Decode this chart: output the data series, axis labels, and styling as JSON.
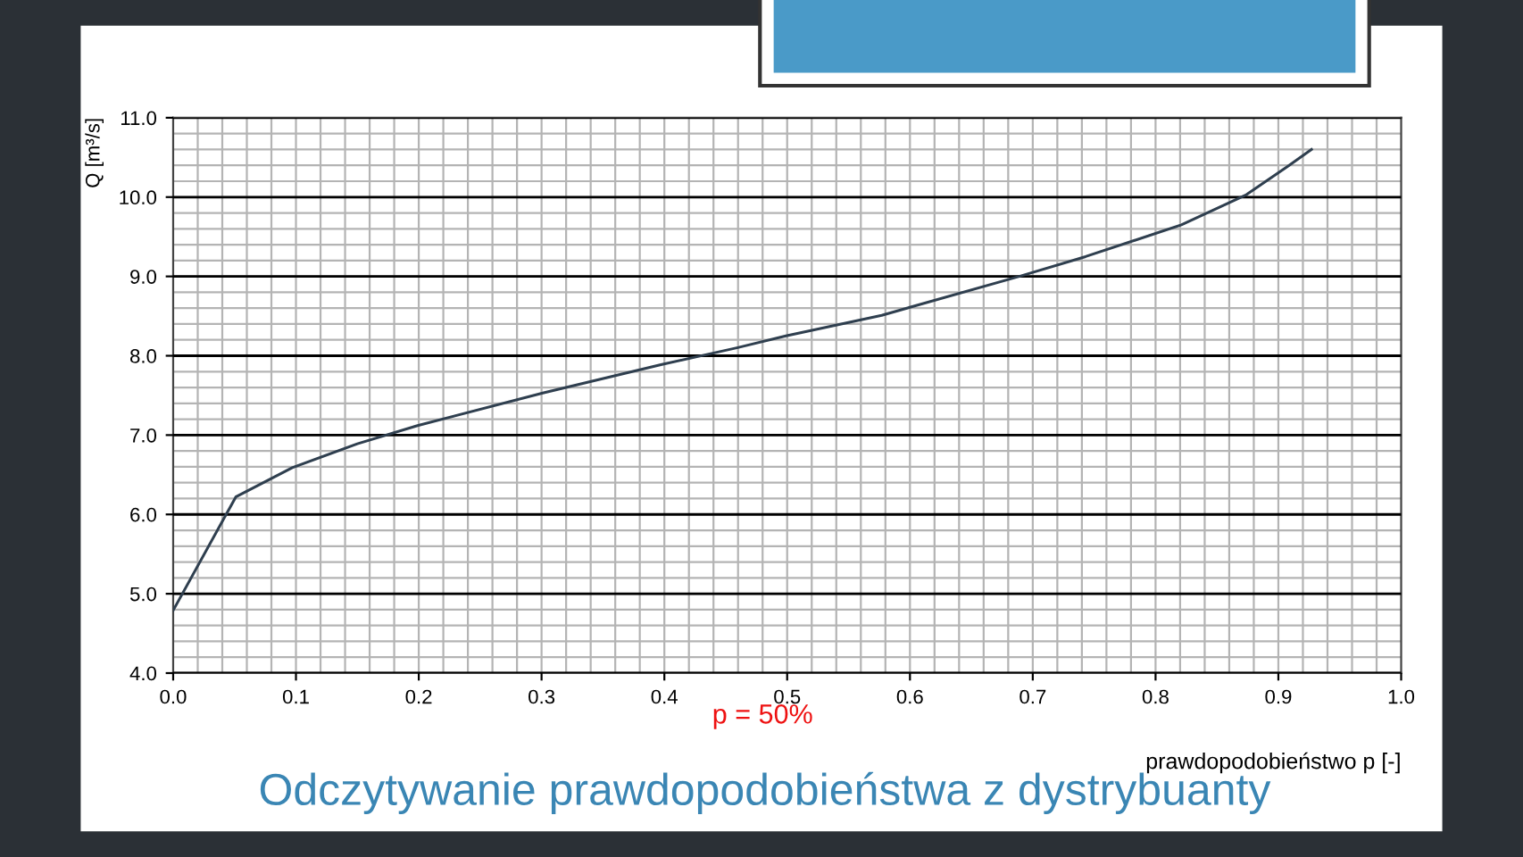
{
  "chart_data": {
    "type": "line",
    "title": "Odczytywanie prawdopodobieństwa z dystrybuanty",
    "xlabel": "prawdopodobieństwo p [-]",
    "ylabel": "Q [m³/s]",
    "annotations": [
      "p = 50%"
    ],
    "series": [
      {
        "color": "#2f3f4f",
        "x": [
          0,
          0.051,
          0.097,
          0.15,
          0.199,
          0.301,
          0.398,
          0.459,
          0.499,
          0.577,
          0.689,
          0.743,
          0.821,
          0.874,
          0.908,
          0.927
        ],
        "values": [
          4.79,
          6.22,
          6.59,
          6.89,
          7.12,
          7.53,
          7.89,
          8.1,
          8.25,
          8.51,
          9.0,
          9.25,
          9.65,
          10.03,
          10.39,
          10.6
        ]
      }
    ],
    "xlim": [
      0,
      1
    ],
    "ylim": [
      4,
      11
    ],
    "xticks": [
      {
        "value": 0,
        "label": "0.0"
      },
      {
        "value": 0.1,
        "label": "0.1"
      },
      {
        "value": 0.2,
        "label": "0.2"
      },
      {
        "value": 0.3,
        "label": "0.3"
      },
      {
        "value": 0.4,
        "label": "0.4"
      },
      {
        "value": 0.5,
        "label": "0.5"
      },
      {
        "value": 0.6,
        "label": "0.6"
      },
      {
        "value": 0.7,
        "label": "0.7"
      },
      {
        "value": 0.8,
        "label": "0.8"
      },
      {
        "value": 0.9,
        "label": "0.9"
      },
      {
        "value": 1,
        "label": "1.0"
      }
    ],
    "yticks": [
      {
        "value": 4,
        "label": "4.0"
      },
      {
        "value": 5,
        "label": "5.0"
      },
      {
        "value": 6,
        "label": "6.0"
      },
      {
        "value": 7,
        "label": "7.0"
      },
      {
        "value": 8,
        "label": "8.0"
      },
      {
        "value": 9,
        "label": "9.0"
      },
      {
        "value": 10,
        "label": "10.0"
      },
      {
        "value": 11,
        "label": "11.0"
      }
    ],
    "grid": true,
    "marker": "none",
    "line_style": "solid"
  }
}
